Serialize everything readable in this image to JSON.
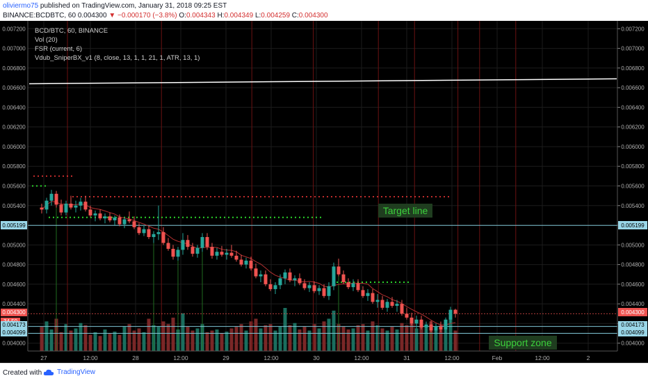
{
  "header": {
    "author": "oliviermo75",
    "published_text": "published on TradingView.com, January 31, 2018 09:25 EST",
    "symbol": "BINANCE:BCDBTC, 60",
    "last_price": "0.004300",
    "change": "▼ −0.000170 (−3.8%)",
    "o_label": "O:",
    "o_value": "0.004343",
    "h_label": "H:",
    "h_value": "0.004349",
    "l_label": "L:",
    "l_value": "0.004259",
    "c_label": "C:",
    "c_value": "0.004300"
  },
  "legend": [
    "BCD/BTC, 60, BINANCE",
    "Vol (20)",
    "FSR (current, 6)",
    "Vdub_SniperBX_v1 (8, close, 13, 1, 1, 21, 1, ATR, 13, 1)"
  ],
  "annotations": {
    "target": "Target line",
    "support": "Support zone"
  },
  "price_tags": {
    "left_cursor": "0.005199",
    "right_cursor": "0.005199",
    "last": "0.004300",
    "vol": "34.50",
    "left_a": "0.004173",
    "left_b": "0.004099",
    "right_a": "0.004173",
    "right_b": "0.004099"
  },
  "footer": {
    "created_with": "Created with",
    "brand": "TradingView"
  },
  "colors": {
    "background": "#000000",
    "up": "#26a69a",
    "down": "#ef5350",
    "vol_up": "#1a6e5e",
    "vol_down": "#7a2727",
    "target_text": "#3cd13c",
    "target_box": "#1f3d1f",
    "resistance": "#ff3b3b",
    "support_dots": "#2bd42b",
    "target_line": "#ffffff"
  },
  "chart_data": {
    "type": "candlestick",
    "x_ticks": [
      "27",
      "12:00",
      "28",
      "12:00",
      "29",
      "12:00",
      "30",
      "12:00",
      "31",
      "12:00",
      "Feb",
      "12:00",
      "2"
    ],
    "y_ticks": [
      "0.007200",
      "0.007000",
      "0.006800",
      "0.006600",
      "0.006400",
      "0.006200",
      "0.006000",
      "0.005800",
      "0.005600",
      "0.005400",
      "0.005200",
      "0.005000",
      "0.004800",
      "0.004600",
      "0.004400",
      "0.004200",
      "0.004000"
    ],
    "ylim": [
      0.00392,
      0.00728
    ],
    "target_line": [
      0.00664,
      0.00669
    ],
    "support_zone": [
      0.0041,
      0.00417
    ],
    "cursor_price": 0.005199,
    "last_price": 0.0043,
    "resistance_levels": [
      0.0057,
      0.00549
    ],
    "support_levels": [
      0.0056,
      0.00528,
      0.00462
    ],
    "ohlc": [
      [
        0.00538,
        0.00542,
        0.00532,
        0.00536
      ],
      [
        0.00536,
        0.00548,
        0.00532,
        0.00545
      ],
      [
        0.00545,
        0.00556,
        0.0054,
        0.00552
      ],
      [
        0.00552,
        0.00555,
        0.00538,
        0.00541
      ],
      [
        0.00541,
        0.00546,
        0.0053,
        0.00533
      ],
      [
        0.00533,
        0.00545,
        0.0053,
        0.00542
      ],
      [
        0.00542,
        0.0055,
        0.00536,
        0.00538
      ],
      [
        0.00538,
        0.00545,
        0.00533,
        0.0054
      ],
      [
        0.0054,
        0.00548,
        0.00535,
        0.00544
      ],
      [
        0.00544,
        0.0055,
        0.00534,
        0.00536
      ],
      [
        0.00536,
        0.0054,
        0.00528,
        0.0053
      ],
      [
        0.0053,
        0.00535,
        0.00524,
        0.00532
      ],
      [
        0.00532,
        0.00536,
        0.00525,
        0.00527
      ],
      [
        0.00527,
        0.00532,
        0.00522,
        0.00529
      ],
      [
        0.00529,
        0.00533,
        0.00523,
        0.00525
      ],
      [
        0.00525,
        0.0053,
        0.0052,
        0.00528
      ],
      [
        0.00528,
        0.00531,
        0.00519,
        0.00521
      ],
      [
        0.00521,
        0.00528,
        0.00517,
        0.00526
      ],
      [
        0.00526,
        0.00534,
        0.00522,
        0.00524
      ],
      [
        0.00524,
        0.00529,
        0.00516,
        0.00518
      ],
      [
        0.00518,
        0.00522,
        0.0051,
        0.00512
      ],
      [
        0.00512,
        0.0052,
        0.00509,
        0.00516
      ],
      [
        0.00516,
        0.00519,
        0.00506,
        0.00508
      ],
      [
        0.00508,
        0.00514,
        0.00502,
        0.00511
      ],
      [
        0.00511,
        0.0054,
        0.00505,
        0.00513
      ],
      [
        0.00513,
        0.00518,
        0.005,
        0.00502
      ],
      [
        0.00502,
        0.00507,
        0.00494,
        0.00496
      ],
      [
        0.00496,
        0.005,
        0.00485,
        0.00488
      ],
      [
        0.00488,
        0.00498,
        0.00484,
        0.00495
      ],
      [
        0.00495,
        0.00512,
        0.0049,
        0.00505
      ],
      [
        0.00505,
        0.0051,
        0.00495,
        0.00498
      ],
      [
        0.00498,
        0.00502,
        0.00488,
        0.00491
      ],
      [
        0.00491,
        0.005,
        0.00487,
        0.00497
      ],
      [
        0.00497,
        0.00512,
        0.00493,
        0.00508
      ],
      [
        0.00508,
        0.00512,
        0.00495,
        0.00498
      ],
      [
        0.00498,
        0.00502,
        0.00486,
        0.00489
      ],
      [
        0.00489,
        0.00497,
        0.00485,
        0.00493
      ],
      [
        0.00493,
        0.00499,
        0.00488,
        0.0049
      ],
      [
        0.0049,
        0.00496,
        0.00485,
        0.00492
      ],
      [
        0.00492,
        0.005,
        0.00487,
        0.00489
      ],
      [
        0.00489,
        0.00494,
        0.00483,
        0.00485
      ],
      [
        0.00485,
        0.0049,
        0.00478,
        0.0048
      ],
      [
        0.0048,
        0.00487,
        0.00476,
        0.00484
      ],
      [
        0.00484,
        0.00488,
        0.00474,
        0.00476
      ],
      [
        0.00476,
        0.00481,
        0.00466,
        0.00468
      ],
      [
        0.00468,
        0.00474,
        0.00462,
        0.0047
      ],
      [
        0.0047,
        0.00474,
        0.00458,
        0.0046
      ],
      [
        0.0046,
        0.00465,
        0.00453,
        0.00455
      ],
      [
        0.00455,
        0.00462,
        0.0045,
        0.00459
      ],
      [
        0.00459,
        0.0047,
        0.00455,
        0.00466
      ],
      [
        0.00466,
        0.00475,
        0.0046,
        0.00472
      ],
      [
        0.00472,
        0.00476,
        0.00462,
        0.00464
      ],
      [
        0.00464,
        0.00469,
        0.00458,
        0.00466
      ],
      [
        0.00466,
        0.00471,
        0.00459,
        0.00461
      ],
      [
        0.00461,
        0.00465,
        0.00454,
        0.00456
      ],
      [
        0.00456,
        0.00462,
        0.00452,
        0.00459
      ],
      [
        0.00459,
        0.00463,
        0.00451,
        0.00453
      ],
      [
        0.00453,
        0.00459,
        0.00449,
        0.00456
      ],
      [
        0.00456,
        0.0046,
        0.00446,
        0.00448
      ],
      [
        0.00448,
        0.00462,
        0.00444,
        0.00458
      ],
      [
        0.00458,
        0.00482,
        0.00454,
        0.00478
      ],
      [
        0.00478,
        0.00486,
        0.00468,
        0.0047
      ],
      [
        0.0047,
        0.00474,
        0.0046,
        0.00462
      ],
      [
        0.00462,
        0.00466,
        0.00455,
        0.00457
      ],
      [
        0.00457,
        0.00465,
        0.00453,
        0.00461
      ],
      [
        0.00461,
        0.00465,
        0.00452,
        0.00454
      ],
      [
        0.00454,
        0.00458,
        0.00446,
        0.00448
      ],
      [
        0.00448,
        0.00455,
        0.00443,
        0.00451
      ],
      [
        0.00451,
        0.00455,
        0.0044,
        0.00442
      ],
      [
        0.00442,
        0.0045,
        0.00436,
        0.00444
      ],
      [
        0.00444,
        0.00448,
        0.00434,
        0.00436
      ],
      [
        0.00436,
        0.00445,
        0.00432,
        0.00442
      ],
      [
        0.00442,
        0.00447,
        0.00436,
        0.00438
      ],
      [
        0.00438,
        0.00444,
        0.00432,
        0.0044
      ],
      [
        0.0044,
        0.00444,
        0.00428,
        0.0043
      ],
      [
        0.0043,
        0.00436,
        0.00424,
        0.00426
      ],
      [
        0.00426,
        0.00431,
        0.00418,
        0.0042
      ],
      [
        0.0042,
        0.00428,
        0.00415,
        0.00424
      ],
      [
        0.00424,
        0.00428,
        0.00414,
        0.00416
      ],
      [
        0.00416,
        0.00422,
        0.0041,
        0.00419
      ],
      [
        0.00419,
        0.00423,
        0.00411,
        0.00413
      ],
      [
        0.00413,
        0.0042,
        0.00409,
        0.00417
      ],
      [
        0.00417,
        0.00422,
        0.00411,
        0.00414
      ],
      [
        0.00414,
        0.00426,
        0.0041,
        0.00424
      ],
      [
        0.00424,
        0.00437,
        0.0042,
        0.00434
      ],
      [
        0.00434,
        0.00435,
        0.00426,
        0.0043
      ]
    ],
    "volume": [
      45,
      55,
      40,
      60,
      35,
      50,
      38,
      42,
      52,
      48,
      30,
      35,
      28,
      40,
      32,
      36,
      30,
      45,
      50,
      38,
      42,
      35,
      60,
      48,
      45,
      55,
      50,
      62,
      40,
      70,
      45,
      38,
      42,
      50,
      35,
      38,
      40,
      33,
      36,
      42,
      45,
      50,
      38,
      55,
      60,
      42,
      48,
      50,
      38,
      45,
      80,
      48,
      52,
      40,
      45,
      38,
      50,
      42,
      55,
      60,
      75,
      50,
      45,
      40,
      42,
      48,
      50,
      38,
      55,
      48,
      42,
      38,
      45,
      40,
      52,
      48,
      55,
      42,
      45,
      48,
      55,
      42,
      48,
      52,
      60,
      38
    ]
  }
}
